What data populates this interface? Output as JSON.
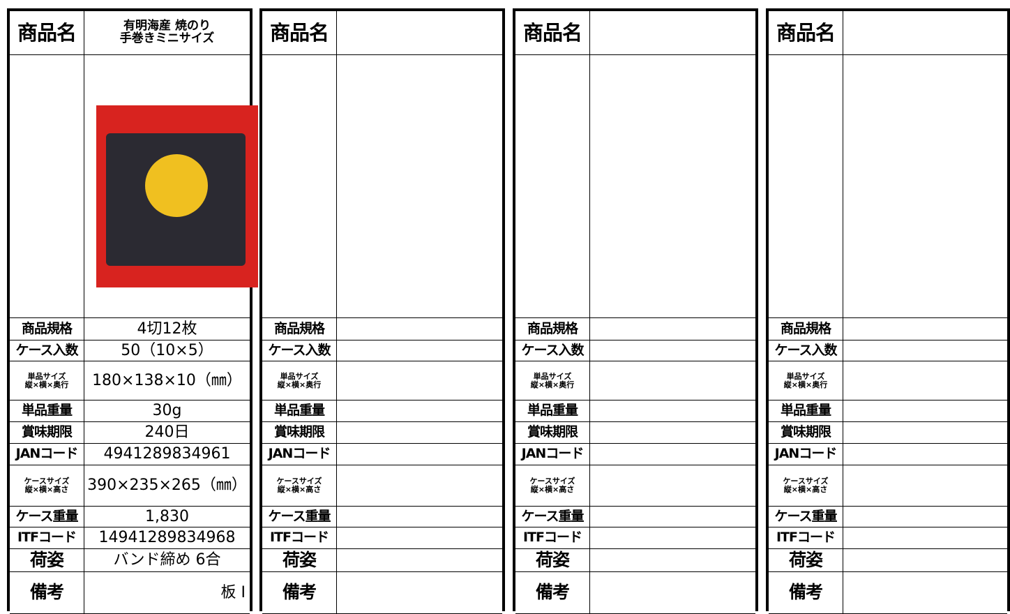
{
  "panels": [
    {
      "header": {
        "label": "商品名",
        "value": "有明海産 焼のり\n手巻きミニサイズ"
      },
      "rows": [
        {
          "label": "商品規格",
          "value": "4切12枚"
        },
        {
          "label": "ケース入数",
          "value": "50（10×5）"
        },
        {
          "label": "単品サイズ\n縦×横×奥行",
          "value": "180×138×10（㎜）"
        },
        {
          "label": "単品重量",
          "value": "30g"
        },
        {
          "label": "賞味期限",
          "value": "240日"
        },
        {
          "label": "JANコード",
          "value": "4941289834961"
        },
        {
          "label": "ケースサイズ\n縦×横×高さ",
          "value": "390×235×265（㎜）"
        },
        {
          "label": "ケース重量",
          "value": "1,830"
        },
        {
          "label": "ITFコード",
          "value": "14941289834968"
        },
        {
          "label": "荷姿",
          "value": "バンド締め 6合"
        },
        {
          "label": "備考",
          "value": "板 I"
        }
      ]
    },
    {
      "header": {
        "label": "商品名"
      },
      "rows": [
        {
          "label": "商品規格"
        },
        {
          "label": "ケース入数"
        },
        {
          "label": "単品サイズ\n縦×横×奥行"
        },
        {
          "label": "単品重量"
        },
        {
          "label": "賞味期限"
        },
        {
          "label": "JANコード"
        },
        {
          "label": "ケースサイズ\n縦×横×高さ"
        },
        {
          "label": "ケース重量"
        },
        {
          "label": "ITFコード"
        },
        {
          "label": "荷姿"
        },
        {
          "label": "備考"
        }
      ]
    },
    {
      "header": {
        "label": "商品名"
      },
      "rows": [
        {
          "label": "商品規格"
        },
        {
          "label": "ケース入数"
        },
        {
          "label": "単品サイズ\n縦×横×奥行"
        },
        {
          "label": "単品重量"
        },
        {
          "label": "賞味期限"
        },
        {
          "label": "JANコード"
        },
        {
          "label": "ケースサイズ\n縦×横×高さ"
        },
        {
          "label": "ケース重量"
        },
        {
          "label": "ITFコード"
        },
        {
          "label": "荷姿"
        },
        {
          "label": "備考"
        }
      ]
    },
    {
      "header": {
        "label": "商品名"
      },
      "rows": [
        {
          "label": "商品規格"
        },
        {
          "label": "ケース入数"
        },
        {
          "label": "単品サイズ\n縦×横×奥行"
        },
        {
          "label": "単品重量"
        },
        {
          "label": "賞味期限"
        },
        {
          "label": "JANコード"
        },
        {
          "label": "ケースサイズ\n縦×横×高さ"
        },
        {
          "label": "ケース重量"
        },
        {
          "label": "ITFコード"
        },
        {
          "label": "荷姿"
        },
        {
          "label": "備考"
        }
      ]
    }
  ]
}
